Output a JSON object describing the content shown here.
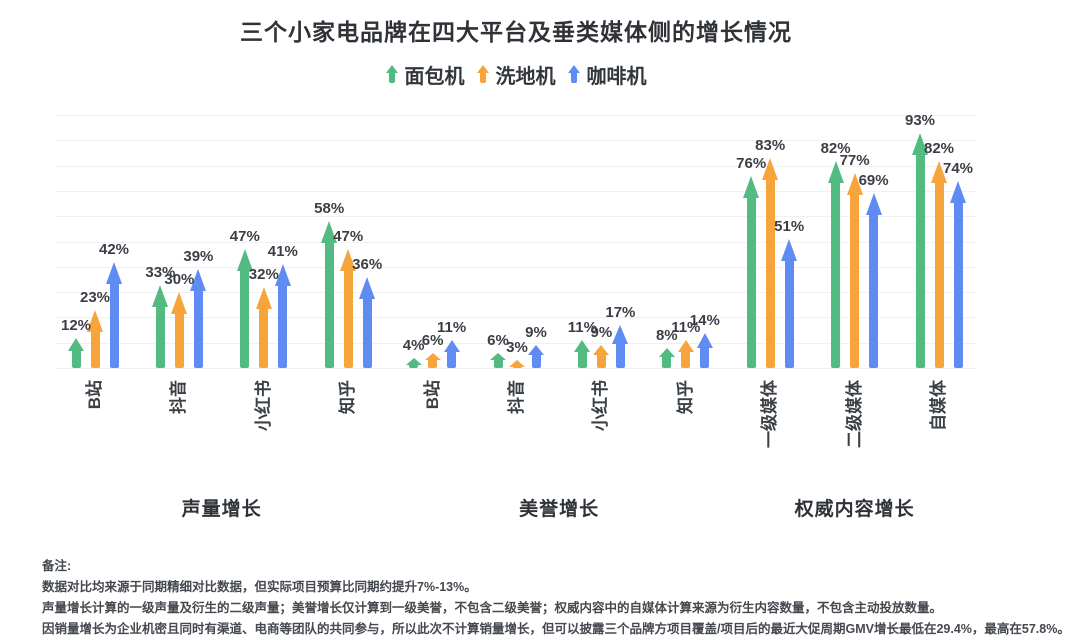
{
  "title": "三个小家电品牌在四大平台及垂类媒体侧的增长情况",
  "legend": [
    {
      "name": "面包机",
      "color": "#53bb81",
      "icon": "arrow-up-icon"
    },
    {
      "name": "洗地机",
      "color": "#f7a43c",
      "icon": "arrow-up-icon"
    },
    {
      "name": "咖啡机",
      "color": "#5e8cf2",
      "icon": "arrow-up-icon"
    }
  ],
  "chart_data": {
    "type": "bar",
    "bar_style": "upward-arrow",
    "unit": "%",
    "ylim": [
      0,
      100
    ],
    "grid": true,
    "legend_position": "top-center",
    "value_label_format": "{value}%",
    "series_names": [
      "面包机",
      "洗地机",
      "咖啡机"
    ],
    "colors": [
      "#53bb81",
      "#f7a43c",
      "#5e8cf2"
    ],
    "groups": [
      {
        "title": "声量增长",
        "categories": [
          "B站",
          "抖音",
          "小红书",
          "知乎"
        ],
        "series": [
          {
            "name": "面包机",
            "values": [
              12,
              33,
              47,
              58
            ]
          },
          {
            "name": "洗地机",
            "values": [
              23,
              30,
              32,
              47
            ]
          },
          {
            "name": "咖啡机",
            "values": [
              42,
              39,
              41,
              36
            ]
          }
        ]
      },
      {
        "title": "美誉增长",
        "categories": [
          "B站",
          "抖音",
          "小红书",
          "知乎"
        ],
        "series": [
          {
            "name": "面包机",
            "values": [
              4,
              6,
              11,
              8
            ]
          },
          {
            "name": "洗地机",
            "values": [
              6,
              3,
              9,
              11
            ]
          },
          {
            "name": "咖啡机",
            "values": [
              11,
              9,
              17,
              14
            ]
          }
        ]
      },
      {
        "title": "权威内容增长",
        "categories": [
          "一级媒体",
          "二级媒体",
          "自媒体"
        ],
        "series": [
          {
            "name": "面包机",
            "values": [
              76,
              82,
              93
            ]
          },
          {
            "name": "洗地机",
            "values": [
              83,
              77,
              82
            ]
          },
          {
            "name": "咖啡机",
            "values": [
              51,
              69,
              74
            ]
          }
        ]
      }
    ]
  },
  "notes": {
    "heading": "备注:",
    "lines": [
      "数据对比均来源于同期精细对比数据，但实际项目预算比同期约提升7%-13%。",
      "声量增长计算的一级声量及衍生的二级声量；美誉增长仅计算到一级美誉，不包含二级美誉；权威内容中的自媒体计算来源为衍生内容数量，不包含主动投放数量。",
      "因销量增长为企业机密且同时有渠道、电商等团队的共同参与，所以此次不计算销量增长，但可以披露三个品牌方项目覆盖/项目后的最近大促周期GMV增长最低在29.4%，最高在57.8%。"
    ]
  }
}
